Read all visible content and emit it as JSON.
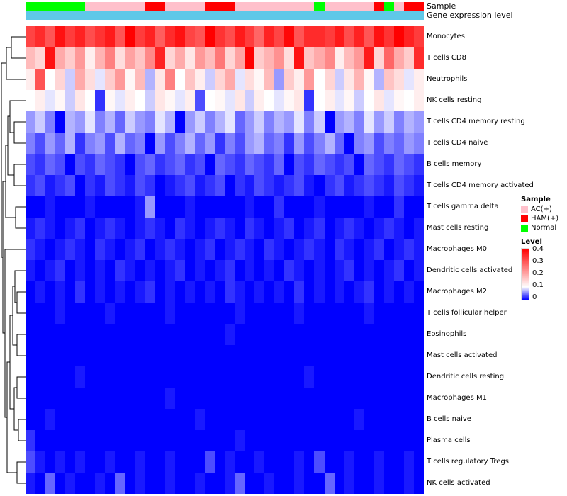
{
  "annotations": {
    "sample_label": "Sample",
    "gene_label": "Gene expression level",
    "gene_bar_color": "#5FC8E8",
    "sample_colors": {
      "AC": "#FFC0CB",
      "HAM": "#FF0000",
      "Normal": "#00FF00"
    }
  },
  "legend": {
    "sample_title": "Sample",
    "sample_items": [
      {
        "label": "AC(+)",
        "color": "#FFC0CB"
      },
      {
        "label": "HAM(+)",
        "color": "#FF0000"
      },
      {
        "label": "Normal",
        "color": "#00FF00"
      }
    ],
    "level_title": "Level",
    "level_ticks": [
      "0.4",
      "0.3",
      "0.2",
      "0.1",
      "0"
    ],
    "level_gradient": [
      "#FF0000",
      "#FFFFFF",
      "#0000FF"
    ]
  },
  "chart_data": {
    "type": "heatmap",
    "title": "",
    "n_columns": 40,
    "zlim": [
      0,
      0.4
    ],
    "white_point": 0.1,
    "colormap": [
      "#0000FF",
      "#FFFFFF",
      "#FF0000"
    ],
    "legend_position": "right",
    "row_dendrogram": true,
    "column_labels_visible": false,
    "column_annotation": {
      "name": "Sample",
      "values": [
        "Normal",
        "Normal",
        "Normal",
        "Normal",
        "Normal",
        "Normal",
        "AC",
        "AC",
        "AC",
        "AC",
        "AC",
        "AC",
        "HAM",
        "HAM",
        "AC",
        "AC",
        "AC",
        "AC",
        "HAM",
        "HAM",
        "HAM",
        "AC",
        "AC",
        "AC",
        "AC",
        "AC",
        "AC",
        "AC",
        "AC",
        "Normal",
        "AC",
        "AC",
        "AC",
        "AC",
        "AC",
        "HAM",
        "Normal",
        "AC",
        "HAM",
        "HAM"
      ]
    },
    "rows": [
      {
        "name": "Monocytes",
        "values": [
          0.32,
          0.35,
          0.3,
          0.38,
          0.33,
          0.36,
          0.31,
          0.34,
          0.37,
          0.3,
          0.4,
          0.33,
          0.36,
          0.29,
          0.35,
          0.38,
          0.32,
          0.3,
          0.42,
          0.34,
          0.31,
          0.37,
          0.33,
          0.28,
          0.36,
          0.32,
          0.39,
          0.3,
          0.35,
          0.35,
          0.33,
          0.37,
          0.31,
          0.36,
          0.3,
          0.38,
          0.34,
          0.4,
          0.36,
          0.33
        ]
      },
      {
        "name": "T cells CD8",
        "values": [
          0.18,
          0.15,
          0.38,
          0.2,
          0.16,
          0.22,
          0.12,
          0.19,
          0.25,
          0.14,
          0.21,
          0.17,
          0.24,
          0.36,
          0.15,
          0.2,
          0.13,
          0.22,
          0.18,
          0.26,
          0.15,
          0.21,
          0.4,
          0.16,
          0.19,
          0.23,
          0.14,
          0.38,
          0.17,
          0.2,
          0.24,
          0.12,
          0.18,
          0.22,
          0.37,
          0.15,
          0.28,
          0.2,
          0.16,
          0.35
        ]
      },
      {
        "name": "Neutrophils",
        "values": [
          0.12,
          0.3,
          0.1,
          0.15,
          0.08,
          0.2,
          0.14,
          0.09,
          0.16,
          0.22,
          0.11,
          0.18,
          0.07,
          0.13,
          0.25,
          0.1,
          0.17,
          0.12,
          0.08,
          0.15,
          0.2,
          0.09,
          0.14,
          0.11,
          0.18,
          0.06,
          0.16,
          0.12,
          0.22,
          0.1,
          0.15,
          0.08,
          0.13,
          0.19,
          0.11,
          0.07,
          0.17,
          0.14,
          0.09,
          0.12
        ]
      },
      {
        "name": "NK cells resting",
        "values": [
          0.1,
          0.12,
          0.09,
          0.11,
          0.08,
          0.13,
          0.1,
          0.02,
          0.11,
          0.09,
          0.12,
          0.1,
          0.08,
          0.13,
          0.11,
          0.09,
          0.12,
          0.03,
          0.1,
          0.11,
          0.09,
          0.13,
          0.08,
          0.12,
          0.1,
          0.09,
          0.11,
          0.13,
          0.02,
          0.1,
          0.12,
          0.09,
          0.11,
          0.08,
          0.1,
          0.13,
          0.09,
          0.11,
          0.1,
          0.12
        ]
      },
      {
        "name": "T cells CD4 memory resting",
        "values": [
          0.06,
          0.08,
          0.05,
          0,
          0.07,
          0.06,
          0.09,
          0.05,
          0.07,
          0.04,
          0.08,
          0.06,
          0.05,
          0.09,
          0.07,
          0,
          0.06,
          0.08,
          0.05,
          0.07,
          0.09,
          0.04,
          0.06,
          0.08,
          0.05,
          0.07,
          0.06,
          0.09,
          0.05,
          0.08,
          0,
          0.06,
          0.07,
          0.05,
          0.09,
          0.06,
          0.08,
          0.05,
          0.07,
          0.06
        ]
      },
      {
        "name": "T cells CD4 naive",
        "values": [
          0.05,
          0.03,
          0.06,
          0.04,
          0.07,
          0.02,
          0.05,
          0.06,
          0.03,
          0.07,
          0.04,
          0.05,
          0,
          0.06,
          0.03,
          0.05,
          0.07,
          0.04,
          0.06,
          0.02,
          0.05,
          0.03,
          0.06,
          0.07,
          0.04,
          0.05,
          0.02,
          0.06,
          0.03,
          0.05,
          0.07,
          0.04,
          0,
          0.05,
          0.06,
          0.03,
          0.05,
          0.04,
          0.06,
          0.05
        ]
      },
      {
        "name": "B cells memory",
        "values": [
          0.03,
          0.02,
          0.04,
          0.03,
          0,
          0.03,
          0.02,
          0.04,
          0.03,
          0.02,
          0,
          0.03,
          0.04,
          0.02,
          0.03,
          0.04,
          0.02,
          0.03,
          0,
          0.04,
          0.03,
          0.02,
          0.04,
          0.03,
          0.02,
          0.04,
          0,
          0.03,
          0.02,
          0.04,
          0.03,
          0.02,
          0.03,
          0,
          0.04,
          0.03,
          0.02,
          0.04,
          0.03,
          0.02
        ]
      },
      {
        "name": "T cells CD4 memory activated",
        "values": [
          0.02,
          0.03,
          0.01,
          0.02,
          0.03,
          0,
          0.02,
          0.01,
          0.03,
          0.02,
          0.01,
          0.03,
          0.02,
          0,
          0.01,
          0.02,
          0.03,
          0.01,
          0.02,
          0.03,
          0,
          0.02,
          0.01,
          0.03,
          0.02,
          0.01,
          0.02,
          0.03,
          0.01,
          0,
          0.02,
          0.03,
          0.01,
          0.02,
          0.03,
          0.02,
          0.01,
          0.03,
          0.02,
          0.01
        ]
      },
      {
        "name": "T cells gamma delta",
        "values": [
          0,
          0,
          0.01,
          0,
          0,
          0,
          0.01,
          0,
          0,
          0,
          0,
          0.01,
          0.06,
          0,
          0,
          0,
          0.01,
          0,
          0,
          0,
          0,
          0,
          0.01,
          0,
          0,
          0.02,
          0,
          0,
          0,
          0.01,
          0,
          0,
          0,
          0,
          0.01,
          0,
          0,
          0.02,
          0,
          0
        ]
      },
      {
        "name": "Mast cells resting",
        "values": [
          0.01,
          0.02,
          0.01,
          0,
          0.01,
          0.02,
          0,
          0.01,
          0.02,
          0.01,
          0,
          0.01,
          0.02,
          0.01,
          0,
          0.02,
          0.01,
          0,
          0.01,
          0.02,
          0.01,
          0,
          0.02,
          0.01,
          0,
          0.01,
          0.02,
          0,
          0.01,
          0.02,
          0,
          0.01,
          0.02,
          0.01,
          0,
          0.01,
          0.02,
          0.01,
          0,
          0.01
        ]
      },
      {
        "name": "Macrophages M0",
        "values": [
          0.02,
          0.01,
          0,
          0.01,
          0.02,
          0.01,
          0,
          0.02,
          0.01,
          0,
          0.01,
          0.02,
          0,
          0.01,
          0.02,
          0.01,
          0,
          0.01,
          0.02,
          0,
          0.01,
          0.02,
          0.01,
          0,
          0.02,
          0.01,
          0,
          0.01,
          0.02,
          0.01,
          0,
          0.02,
          0.01,
          0,
          0.01,
          0.02,
          0,
          0.01,
          0.02,
          0.01
        ]
      },
      {
        "name": "Dendritic cells activated",
        "values": [
          0.01,
          0,
          0.01,
          0.02,
          0,
          0.01,
          0,
          0.01,
          0,
          0.02,
          0.01,
          0,
          0.01,
          0,
          0.01,
          0.02,
          0,
          0.01,
          0,
          0.01,
          0.02,
          0,
          0.01,
          0,
          0.01,
          0,
          0.02,
          0.01,
          0,
          0.01,
          0,
          0.01,
          0.02,
          0,
          0.01,
          0,
          0.01,
          0.02,
          0,
          0.01
        ]
      },
      {
        "name": "Macrophages M2",
        "values": [
          0,
          0.01,
          0,
          0.01,
          0,
          0.02,
          0,
          0.01,
          0,
          0.01,
          0,
          0.01,
          0.02,
          0,
          0.01,
          0,
          0.01,
          0,
          0.01,
          0,
          0.02,
          0.01,
          0,
          0.01,
          0,
          0.01,
          0,
          0.02,
          0,
          0.01,
          0,
          0.01,
          0,
          0.01,
          0.02,
          0,
          0.01,
          0,
          0.01,
          0
        ]
      },
      {
        "name": "T cells follicular helper",
        "values": [
          0,
          0,
          0,
          0.01,
          0,
          0,
          0,
          0,
          0.01,
          0,
          0,
          0,
          0,
          0,
          0.01,
          0,
          0,
          0,
          0,
          0,
          0,
          0.01,
          0,
          0,
          0,
          0,
          0,
          0.01,
          0,
          0,
          0,
          0,
          0,
          0,
          0.01,
          0,
          0,
          0,
          0,
          0
        ]
      },
      {
        "name": "Eosinophils",
        "values": [
          0,
          0,
          0,
          0,
          0,
          0,
          0,
          0,
          0,
          0,
          0,
          0,
          0,
          0,
          0,
          0,
          0,
          0,
          0,
          0,
          0.01,
          0,
          0,
          0,
          0,
          0,
          0,
          0,
          0,
          0,
          0,
          0,
          0,
          0,
          0,
          0,
          0,
          0,
          0,
          0
        ]
      },
      {
        "name": "Mast cells activated",
        "values": [
          0,
          0,
          0,
          0,
          0,
          0,
          0,
          0,
          0,
          0,
          0,
          0,
          0,
          0,
          0,
          0,
          0,
          0,
          0,
          0,
          0,
          0,
          0,
          0,
          0,
          0,
          0,
          0,
          0,
          0,
          0,
          0,
          0,
          0,
          0,
          0,
          0,
          0,
          0,
          0
        ]
      },
      {
        "name": "Dendritic cells resting",
        "values": [
          0,
          0,
          0,
          0,
          0,
          0.01,
          0,
          0,
          0,
          0,
          0,
          0,
          0,
          0,
          0,
          0,
          0,
          0,
          0,
          0,
          0,
          0,
          0,
          0,
          0,
          0,
          0,
          0,
          0.01,
          0,
          0,
          0,
          0,
          0,
          0,
          0,
          0,
          0,
          0,
          0
        ]
      },
      {
        "name": "Macrophages M1",
        "values": [
          0,
          0,
          0,
          0,
          0,
          0,
          0,
          0,
          0,
          0,
          0,
          0,
          0,
          0,
          0.01,
          0,
          0,
          0,
          0,
          0,
          0,
          0,
          0,
          0,
          0,
          0,
          0,
          0,
          0,
          0,
          0,
          0,
          0,
          0,
          0,
          0,
          0,
          0,
          0,
          0
        ]
      },
      {
        "name": "B cells naive",
        "values": [
          0,
          0,
          0.01,
          0,
          0,
          0,
          0,
          0,
          0,
          0,
          0,
          0,
          0,
          0,
          0,
          0,
          0,
          0.01,
          0,
          0,
          0,
          0,
          0,
          0,
          0,
          0,
          0,
          0,
          0,
          0,
          0,
          0,
          0,
          0.01,
          0,
          0,
          0,
          0,
          0,
          0
        ]
      },
      {
        "name": "Plasma cells",
        "values": [
          0.02,
          0,
          0,
          0,
          0,
          0,
          0,
          0,
          0,
          0,
          0,
          0,
          0,
          0,
          0,
          0,
          0,
          0,
          0,
          0,
          0,
          0.01,
          0,
          0,
          0,
          0,
          0,
          0,
          0,
          0,
          0,
          0,
          0,
          0,
          0,
          0,
          0,
          0,
          0,
          0
        ]
      },
      {
        "name": "T cells regulatory  Tregs",
        "values": [
          0.03,
          0.01,
          0,
          0.01,
          0,
          0.01,
          0,
          0,
          0.01,
          0,
          0,
          0.01,
          0,
          0,
          0.01,
          0,
          0,
          0,
          0.03,
          0,
          0.01,
          0,
          0,
          0.01,
          0,
          0,
          0,
          0.01,
          0,
          0.03,
          0,
          0,
          0.01,
          0,
          0,
          0.01,
          0,
          0,
          0.01,
          0
        ]
      },
      {
        "name": "NK cells activated",
        "values": [
          0.01,
          0,
          0.04,
          0,
          0.01,
          0,
          0,
          0.01,
          0,
          0.04,
          0,
          0.01,
          0,
          0,
          0.01,
          0,
          0,
          0.01,
          0,
          0,
          0.01,
          0.04,
          0,
          0,
          0.01,
          0,
          0,
          0.01,
          0,
          0,
          0.04,
          0,
          0.01,
          0,
          0,
          0.01,
          0,
          0,
          0.01,
          0
        ]
      }
    ]
  }
}
